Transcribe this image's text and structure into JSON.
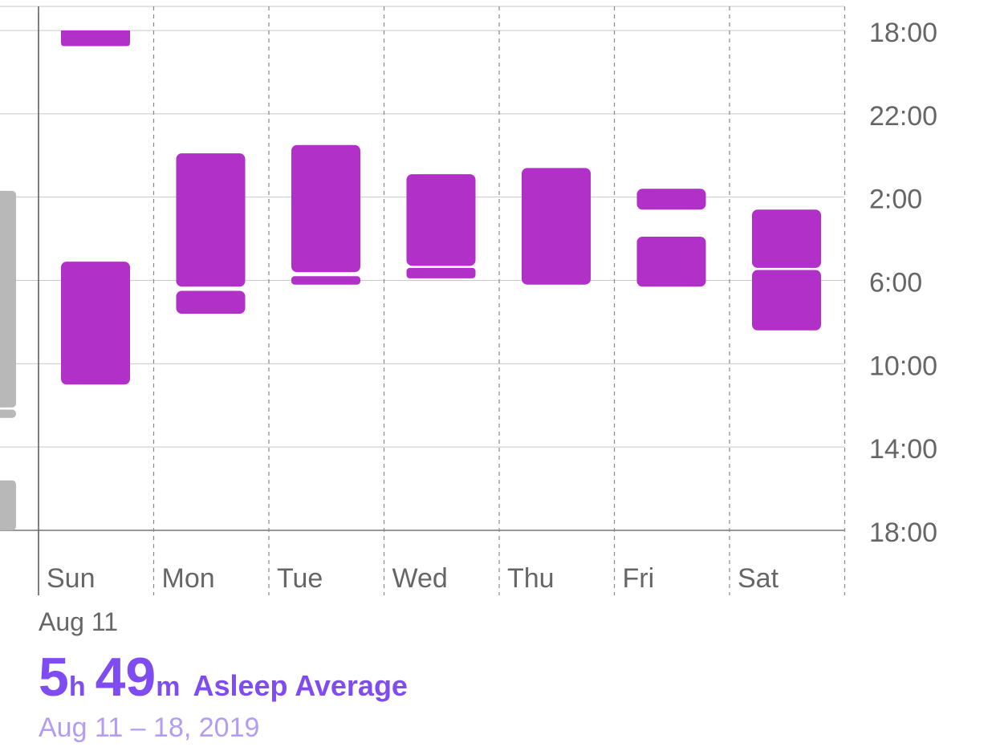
{
  "chart_data": {
    "type": "range-bar",
    "y_tick_labels": [
      "18:00",
      "22:00",
      "2:00",
      "6:00",
      "10:00",
      "14:00",
      "18:00"
    ],
    "categories": [
      "Sun",
      "Mon",
      "Tue",
      "Wed",
      "Thu",
      "Fri",
      "Sat"
    ],
    "start_date_label": "Aug 11",
    "note": "Hours measured from 18:00 of the previous day (0 = 18:00, 8 = 2:00, 24 = 18:00 next day).",
    "sleep_segments": [
      {
        "day": "Sun",
        "segments": [
          [
            0,
            0.75
          ],
          [
            11.1,
            17.0
          ]
        ]
      },
      {
        "day": "Mon",
        "segments": [
          [
            5.9,
            12.3
          ],
          [
            12.5,
            13.6
          ]
        ]
      },
      {
        "day": "Tue",
        "segments": [
          [
            5.5,
            11.6
          ],
          [
            11.8,
            12.2
          ]
        ]
      },
      {
        "day": "Wed",
        "segments": [
          [
            6.9,
            11.3
          ],
          [
            11.4,
            11.9
          ]
        ]
      },
      {
        "day": "Thu",
        "segments": [
          [
            6.6,
            12.2
          ]
        ]
      },
      {
        "day": "Fri",
        "segments": [
          [
            7.6,
            8.6
          ],
          [
            9.9,
            12.3
          ]
        ]
      },
      {
        "day": "Sat",
        "segments": [
          [
            8.6,
            11.4
          ],
          [
            11.5,
            14.4
          ]
        ]
      }
    ],
    "previous_week_segments": [
      [
        7.7,
        18.1
      ],
      [
        18.2,
        18.6
      ],
      [
        21.6,
        24
      ]
    ],
    "colors": {
      "bar": "#b030c8",
      "previous": "#b8b8b8",
      "grid": "#c8c8c8",
      "axis": "#555555",
      "label": "#666666"
    }
  },
  "summary": {
    "hours": "5",
    "hours_unit": "h",
    "minutes": "49",
    "minutes_unit": "m",
    "label": "Asleep Average",
    "date_range": "Aug 11 – 18, 2019"
  }
}
